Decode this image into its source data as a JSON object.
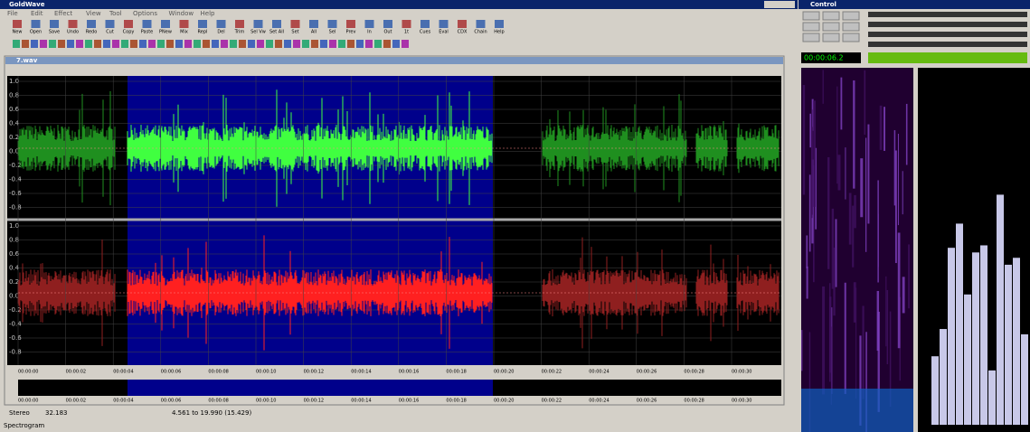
{
  "window": {
    "title": "GoldWave",
    "menu": [
      "File",
      "Edit",
      "Effect",
      "View",
      "Tool",
      "Options",
      "Window",
      "Help"
    ],
    "toolbar": [
      "New",
      "Open",
      "Save",
      "Undo",
      "Redo",
      "Cut",
      "Copy",
      "Paste",
      "PNew",
      "Mix",
      "Repl",
      "Del",
      "Trim",
      "Sel Vw",
      "Set All",
      "Set",
      "All",
      "Sel",
      "Prev",
      "In",
      "Out",
      "1t",
      "Cues",
      "Eval",
      "CDX",
      "Chain",
      "Help"
    ]
  },
  "document": {
    "title": "7.wav",
    "amplitude_labels": [
      "1.0",
      "0.8",
      "0.6",
      "0.4",
      "0.2",
      "0.0",
      "-0.2",
      "-0.4",
      "-0.6",
      "-0.8"
    ],
    "time_labels": [
      "00:00:00",
      "00:00:02",
      "00:00:04",
      "00:00:06",
      "00:00:08",
      "00:00:10",
      "00:00:12",
      "00:00:14",
      "00:00:16",
      "00:00:18",
      "00:00:20",
      "00:00:22",
      "00:00:24",
      "00:00:26",
      "00:00:28",
      "00:00:30"
    ]
  },
  "status": {
    "channels": "Stereo",
    "length": "32.183",
    "selection": "4.561 to 19.990 (15.429)",
    "view": "Spectrogram"
  },
  "control": {
    "title": "Control",
    "time": "00:00:06.2"
  }
}
